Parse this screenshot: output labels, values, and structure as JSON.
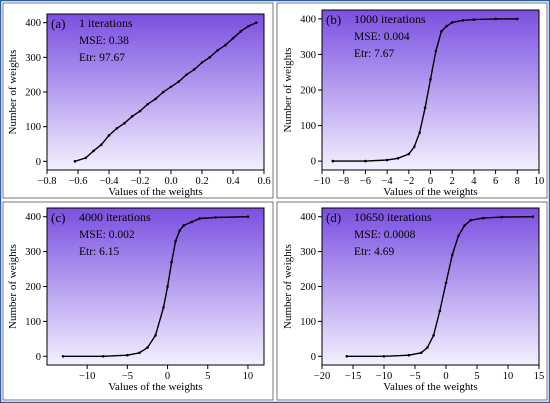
{
  "colors": {
    "panel_gradient_top": "#7a4fe0",
    "panel_gradient_bottom": "#f4f0ff",
    "figure_border": "#2a5ea8",
    "curve": "#000000",
    "marker": "#000000"
  },
  "chart_data": [
    {
      "type": "line",
      "panel_label": "(a)",
      "annotations": [
        "1 iterations",
        "MSE: 0.38",
        "Etr: 97.67"
      ],
      "xlabel": "Values of the weights",
      "ylabel": "Number of weights",
      "xlim": [
        -0.8,
        0.6
      ],
      "ylim": [
        -25,
        425
      ],
      "xticks": [
        -0.8,
        -0.6,
        -0.4,
        -0.2,
        0.0,
        0.2,
        0.4,
        0.6
      ],
      "xtick_labels": [
        "−0.8",
        "−0.6",
        "−0.4",
        "−0.2",
        "0.0",
        "0.2",
        "0.4",
        "0.6"
      ],
      "yticks": [
        0,
        100,
        200,
        300,
        400
      ],
      "ytick_labels": [
        "0",
        "100",
        "200",
        "300",
        "400"
      ],
      "series": [
        {
          "x": [
            -0.62,
            -0.55,
            -0.5,
            -0.45,
            -0.4,
            -0.35,
            -0.3,
            -0.25,
            -0.2,
            -0.15,
            -0.1,
            -0.05,
            0.0,
            0.05,
            0.1,
            0.15,
            0.2,
            0.25,
            0.3,
            0.35,
            0.4,
            0.45,
            0.5,
            0.55
          ],
          "y": [
            0,
            10,
            30,
            48,
            75,
            95,
            110,
            130,
            145,
            165,
            180,
            200,
            215,
            230,
            250,
            265,
            285,
            300,
            320,
            335,
            355,
            375,
            390,
            400
          ]
        }
      ]
    },
    {
      "type": "line",
      "panel_label": "(b)",
      "annotations": [
        "1000 iterations",
        "MSE: 0.004",
        "Etr: 7.67"
      ],
      "xlabel": "Values of the weights",
      "ylabel": "Number of weights",
      "xlim": [
        -10,
        10
      ],
      "ylim": [
        -25,
        425
      ],
      "xticks": [
        -10,
        -8,
        -6,
        -4,
        -2,
        0,
        2,
        4,
        6,
        8,
        10
      ],
      "xtick_labels": [
        "−10",
        "−8",
        "−6",
        "−4",
        "−2",
        "0",
        "2",
        "4",
        "6",
        "8",
        "10"
      ],
      "yticks": [
        0,
        100,
        200,
        300,
        400
      ],
      "ytick_labels": [
        "0",
        "100",
        "200",
        "300",
        "400"
      ],
      "series": [
        {
          "x": [
            -9,
            -6,
            -4,
            -3,
            -2,
            -1.5,
            -1,
            -0.5,
            0,
            0.5,
            1,
            1.5,
            2,
            3,
            4,
            6,
            8
          ],
          "y": [
            0,
            0,
            3,
            8,
            20,
            40,
            80,
            150,
            230,
            310,
            365,
            380,
            390,
            396,
            398,
            400,
            400
          ]
        }
      ]
    },
    {
      "type": "line",
      "panel_label": "(c)",
      "annotations": [
        "4000 iterations",
        "MSE: 0.002",
        "Etr: 6.15"
      ],
      "xlabel": "Values of the weights",
      "ylabel": "Number of weights",
      "xlim": [
        -15,
        12
      ],
      "ylim": [
        -25,
        425
      ],
      "xticks": [
        -10,
        -5,
        0,
        5,
        10
      ],
      "xtick_labels": [
        "−10",
        "−5",
        "0",
        "5",
        "10"
      ],
      "yticks": [
        0,
        100,
        200,
        300,
        400
      ],
      "ytick_labels": [
        "0",
        "100",
        "200",
        "300",
        "400"
      ],
      "series": [
        {
          "x": [
            -13,
            -8,
            -5,
            -3.5,
            -2.5,
            -1.5,
            -0.5,
            0,
            0.5,
            1,
            1.5,
            2,
            3,
            4,
            6,
            10
          ],
          "y": [
            0,
            0,
            3,
            10,
            25,
            60,
            140,
            200,
            270,
            330,
            360,
            375,
            385,
            395,
            398,
            400
          ]
        }
      ]
    },
    {
      "type": "line",
      "panel_label": "(d)",
      "annotations": [
        "10650 iterations",
        "MSE: 0.0008",
        "Etr: 4.69"
      ],
      "xlabel": "Values of the weights",
      "ylabel": "Number of weights",
      "xlim": [
        -20,
        15
      ],
      "ylim": [
        -25,
        425
      ],
      "xticks": [
        -20,
        -15,
        -10,
        -5,
        0,
        5,
        10,
        15
      ],
      "xtick_labels": [
        "−20",
        "−15",
        "−10",
        "−5",
        "0",
        "5",
        "10",
        "15"
      ],
      "yticks": [
        0,
        100,
        200,
        300,
        400
      ],
      "ytick_labels": [
        "0",
        "100",
        "200",
        "300",
        "400"
      ],
      "series": [
        {
          "x": [
            -16,
            -10,
            -6,
            -4,
            -3,
            -2,
            -1,
            0,
            1,
            2,
            3,
            4,
            6,
            9,
            14
          ],
          "y": [
            0,
            0,
            3,
            10,
            25,
            60,
            130,
            210,
            290,
            345,
            375,
            390,
            396,
            399,
            400
          ]
        }
      ]
    }
  ]
}
